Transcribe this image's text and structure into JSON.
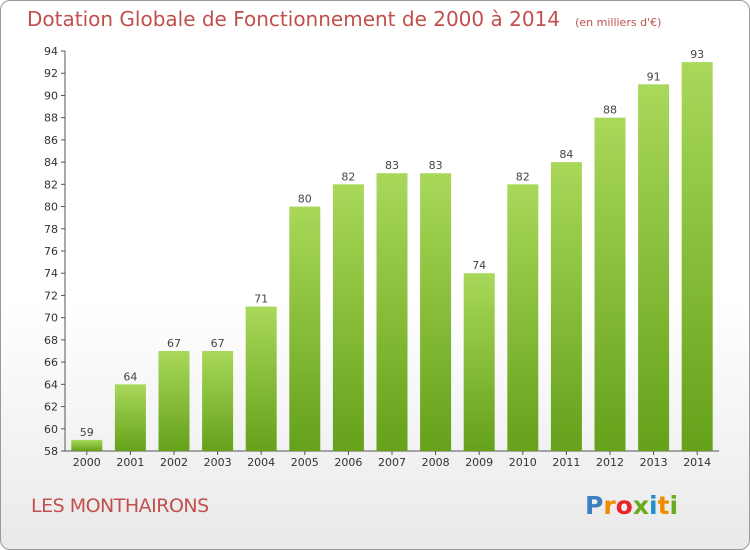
{
  "title": "Dotation Globale de Fonctionnement de 2000 à 2014",
  "subtitle": "(en milliers d'€)",
  "commune": "LES MONTHAIRONS",
  "logo": {
    "text": "Proxiti",
    "letters": [
      "P",
      "r",
      "o",
      "x",
      "i",
      "t",
      "i"
    ],
    "colors": [
      "#3d7fc1",
      "#f08c00",
      "#e8262a",
      "#6aaa1f",
      "#1e90c8",
      "#f08c00",
      "#6aaa1f"
    ]
  },
  "colors": {
    "bar_light": "#a9d85a",
    "bar_dark": "#65a11a",
    "title": "#c0504d"
  },
  "chart_data": {
    "type": "bar",
    "categories": [
      "2000",
      "2001",
      "2002",
      "2003",
      "2004",
      "2005",
      "2006",
      "2007",
      "2008",
      "2009",
      "2010",
      "2011",
      "2012",
      "2013",
      "2014"
    ],
    "values": [
      59,
      64,
      67,
      67,
      71,
      80,
      82,
      83,
      83,
      74,
      82,
      84,
      88,
      91,
      93
    ],
    "ylim": [
      58,
      94
    ],
    "yticks": [
      58,
      60,
      62,
      64,
      66,
      68,
      70,
      72,
      74,
      76,
      78,
      80,
      82,
      84,
      86,
      88,
      90,
      92,
      94
    ],
    "grid": false,
    "legend": "none"
  }
}
